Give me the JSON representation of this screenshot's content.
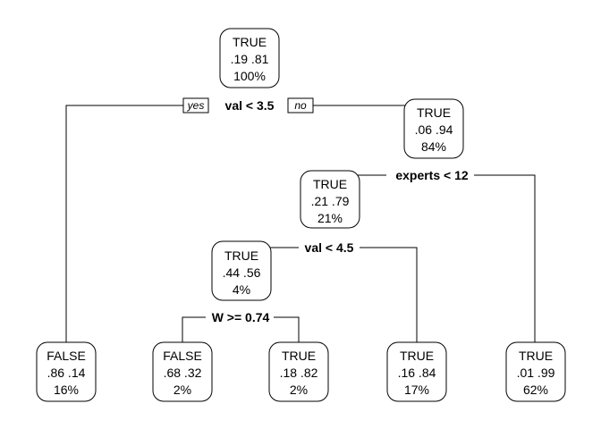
{
  "tree": {
    "nodes": {
      "n1": {
        "label": "TRUE",
        "probs": ".19  .81",
        "pct": "100%"
      },
      "n3": {
        "label": "TRUE",
        "probs": ".06  .94",
        "pct": "84%"
      },
      "n6": {
        "label": "TRUE",
        "probs": ".21  .79",
        "pct": "21%"
      },
      "n12": {
        "label": "TRUE",
        "probs": ".44  .56",
        "pct": "4%"
      },
      "l2": {
        "label": "FALSE",
        "probs": ".86  .14",
        "pct": "16%"
      },
      "l24": {
        "label": "FALSE",
        "probs": ".68  .32",
        "pct": "2%"
      },
      "l25": {
        "label": "TRUE",
        "probs": ".18  .82",
        "pct": "2%"
      },
      "l13": {
        "label": "TRUE",
        "probs": ".16  .84",
        "pct": "17%"
      },
      "l7": {
        "label": "TRUE",
        "probs": ".01  .99",
        "pct": "62%"
      }
    },
    "splits": {
      "s1": "val < 3.5",
      "s3": "experts < 12",
      "s6": "val < 4.5",
      "s12": "W >= 0.74"
    },
    "yes_label": "yes",
    "no_label": "no"
  }
}
